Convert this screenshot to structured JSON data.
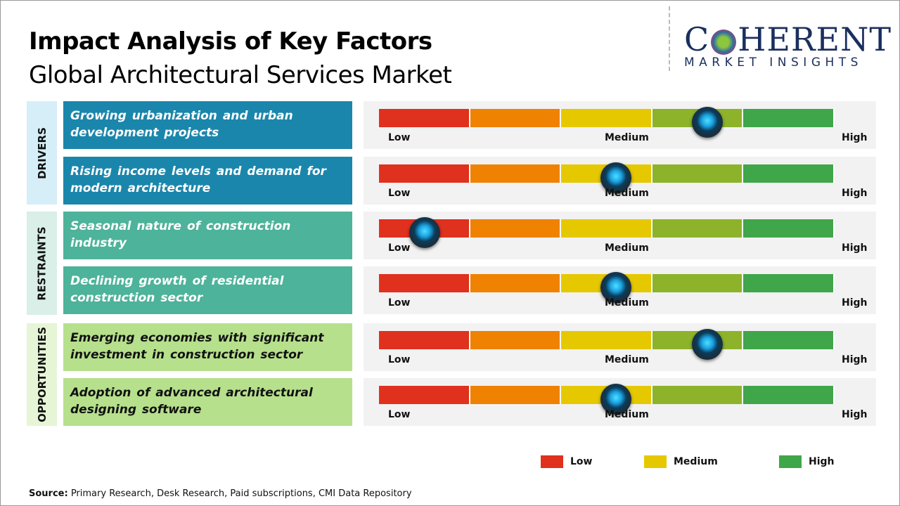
{
  "title": "Impact Analysis of Key Factors",
  "subtitle": "Global Architectural Services Market",
  "logo": {
    "main": "COHERENT",
    "sub": "MARKET INSIGHTS"
  },
  "scale": {
    "low": "Low",
    "medium": "Medium",
    "high": "High",
    "colors": [
      "#e0301e",
      "#ef8200",
      "#e6c800",
      "#8db32a",
      "#3fa64a"
    ]
  },
  "categories": [
    {
      "label": "DRIVERS",
      "bg": "#d6eef8",
      "color": "#1b86ab"
    },
    {
      "label": "RESTRAINTS",
      "bg": "#d9efe8",
      "color": "#4db39a"
    },
    {
      "label": "OPPORTUNITIES",
      "bg": "#e6f5d6",
      "color": "#b6e08c"
    }
  ],
  "factors": [
    {
      "text": "Growing urbanization and urban development projects",
      "category": "DRIVERS",
      "impact": 0.72
    },
    {
      "text": "Rising income levels and demand for modern architecture",
      "category": "DRIVERS",
      "impact": 0.52
    },
    {
      "text": "Seasonal nature of construction industry",
      "category": "RESTRAINTS",
      "impact": 0.1
    },
    {
      "text": "Declining growth of residential construction sector",
      "category": "RESTRAINTS",
      "impact": 0.52
    },
    {
      "text": "Emerging economies with significant investment in construction sector",
      "category": "OPPORTUNITIES",
      "impact": 0.72
    },
    {
      "text": "Adoption of advanced architectural designing software",
      "category": "OPPORTUNITIES",
      "impact": 0.52
    }
  ],
  "legend": [
    {
      "label": "Low",
      "color": "#e0301e"
    },
    {
      "label": "Medium",
      "color": "#e6c800"
    },
    {
      "label": "High",
      "color": "#3fa64a"
    }
  ],
  "source": {
    "label": "Source:",
    "text": " Primary Research, Desk Research, Paid subscriptions, CMI Data Repository"
  }
}
